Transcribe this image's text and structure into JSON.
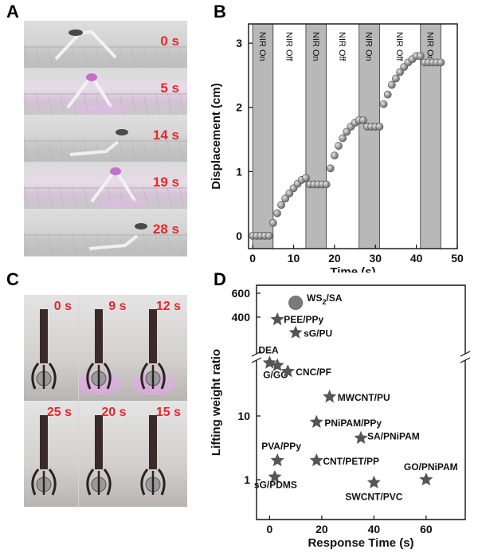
{
  "panel_labels": {
    "a": "A",
    "b": "B",
    "c": "C",
    "d": "D"
  },
  "photo_a": {
    "frames": [
      "0 s",
      "5 s",
      "14 s",
      "19 s",
      "28 s"
    ],
    "lit": [
      false,
      true,
      false,
      true,
      false
    ]
  },
  "photo_c": {
    "frames": [
      "0 s",
      "9 s",
      "12 s",
      "25 s",
      "20 s",
      "15 s"
    ],
    "lit": [
      false,
      true,
      true,
      false,
      false,
      false
    ]
  },
  "colors": {
    "stamp_red": "#e8262a",
    "shade_gray": "#b8b8b8",
    "marker_gray": "#7a7a7a",
    "marker_dark": "#555555"
  },
  "chart_data": [
    {
      "type": "scatter",
      "panel": "B",
      "xlabel": "Time (s)",
      "ylabel": "Displacement (cm)",
      "xlim": [
        -1,
        50
      ],
      "ylim": [
        -0.2,
        3.3
      ],
      "xticks": [
        0,
        10,
        20,
        30,
        40,
        50
      ],
      "yticks": [
        0,
        1,
        2,
        3
      ],
      "bands": [
        {
          "label": "NIR On",
          "start": 0,
          "end": 5,
          "shaded": true
        },
        {
          "label": "NIR Off",
          "start": 5,
          "end": 13,
          "shaded": false
        },
        {
          "label": "NIR On",
          "start": 13,
          "end": 18,
          "shaded": true
        },
        {
          "label": "NIR Off",
          "start": 18,
          "end": 26,
          "shaded": false
        },
        {
          "label": "NIR On",
          "start": 26,
          "end": 31,
          "shaded": true
        },
        {
          "label": "NIR Off",
          "start": 31,
          "end": 41,
          "shaded": false
        },
        {
          "label": "NIR On",
          "start": 41,
          "end": 46,
          "shaded": true
        }
      ],
      "x": [
        0,
        1,
        2,
        3,
        4,
        5,
        6,
        7,
        8,
        9,
        10,
        11,
        12,
        13,
        14,
        15,
        16,
        17,
        18,
        19,
        20,
        21,
        22,
        23,
        24,
        25,
        26,
        27,
        28,
        29,
        30,
        31,
        32,
        33,
        34,
        35,
        36,
        37,
        38,
        39,
        40,
        41,
        42,
        43,
        44,
        45,
        46
      ],
      "y": [
        0,
        0,
        0,
        0,
        0,
        0.2,
        0.35,
        0.48,
        0.58,
        0.66,
        0.74,
        0.81,
        0.87,
        0.9,
        0.8,
        0.8,
        0.8,
        0.8,
        0.8,
        1.05,
        1.25,
        1.4,
        1.52,
        1.62,
        1.7,
        1.76,
        1.8,
        1.8,
        1.7,
        1.7,
        1.7,
        1.7,
        2.05,
        2.2,
        2.35,
        2.45,
        2.55,
        2.63,
        2.7,
        2.75,
        2.8,
        2.8,
        2.7,
        2.7,
        2.7,
        2.7,
        2.7
      ]
    },
    {
      "type": "scatter",
      "panel": "D",
      "xlabel": "Response Time (s)",
      "ylabel": "Lifting weight ratio",
      "yscale": "broken-log",
      "xlim": [
        -5,
        75
      ],
      "xticks": [
        0,
        20,
        40,
        60
      ],
      "yticks_lower": [
        "1",
        "10"
      ],
      "yticks_upper": [
        "400",
        "600"
      ],
      "points": [
        {
          "label": "WS2/SA",
          "x": 10,
          "y": 520,
          "marker": "circle"
        },
        {
          "label": "PEE/PPy",
          "x": 3,
          "y": 380,
          "marker": "star"
        },
        {
          "label": "sG/PU",
          "x": 10,
          "y": 270,
          "marker": "star"
        },
        {
          "label": "DEA",
          "x": 0,
          "y": 68,
          "marker": "star"
        },
        {
          "label": "G/GO",
          "x": 3,
          "y": 62,
          "marker": "star"
        },
        {
          "label": "CNC/PF",
          "x": 7,
          "y": 50,
          "marker": "star"
        },
        {
          "label": "MWCNT/PU",
          "x": 23,
          "y": 20,
          "marker": "star"
        },
        {
          "label": "PNiPAM/PPy",
          "x": 18,
          "y": 8,
          "marker": "star"
        },
        {
          "label": "SA/PNiPAM",
          "x": 35,
          "y": 4.5,
          "marker": "star"
        },
        {
          "label": "PVA/PPy",
          "x": 3,
          "y": 2,
          "marker": "star"
        },
        {
          "label": "CNT/PET/PP",
          "x": 18,
          "y": 2,
          "marker": "star"
        },
        {
          "label": "GO/PNiPAM",
          "x": 60,
          "y": 1,
          "marker": "star"
        },
        {
          "label": "sG/PDMS",
          "x": 2,
          "y": 1.1,
          "marker": "star"
        },
        {
          "label": "SWCNT/PVC",
          "x": 40,
          "y": 0.9,
          "marker": "star"
        }
      ]
    }
  ]
}
